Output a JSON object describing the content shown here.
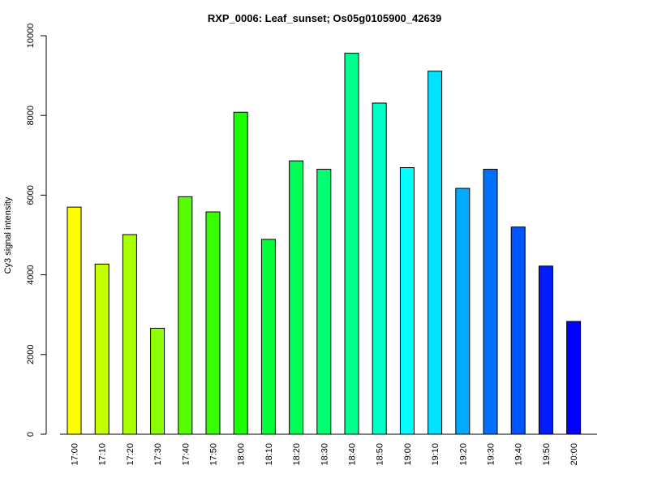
{
  "chart_data": {
    "type": "bar",
    "title": "RXP_0006: Leaf_sunset; Os05g0105900_42639",
    "xlabel": "",
    "ylabel": "Cy3 signal intensity",
    "ylim": [
      0,
      10000
    ],
    "yticks": [
      0,
      2000,
      4000,
      6000,
      8000,
      10000
    ],
    "grid": false,
    "legend": "none",
    "categories": [
      "17:00",
      "17:10",
      "17:20",
      "17:30",
      "17:40",
      "17:50",
      "18:00",
      "18:10",
      "18:20",
      "18:30",
      "18:40",
      "18:50",
      "19:00",
      "19:10",
      "19:20",
      "19:30",
      "19:40",
      "19:50",
      "20:00"
    ],
    "values": [
      5700,
      4270,
      5010,
      2660,
      5960,
      5580,
      8080,
      4890,
      6860,
      6650,
      9560,
      8310,
      6690,
      9110,
      6170,
      6650,
      5200,
      4220,
      2830
    ],
    "colors": [
      "#FFFF00",
      "#C6FF00",
      "#AAFF00",
      "#8EFF00",
      "#55FF00",
      "#38FF00",
      "#1CFF00",
      "#00FF38",
      "#00FF55",
      "#00FF71",
      "#00FF8E",
      "#00FFC6",
      "#00FFFF",
      "#00E2FF",
      "#00AAFF",
      "#0071FF",
      "#0055FF",
      "#001CFF",
      "#0000FF"
    ],
    "bar_edge_color": "#000000"
  }
}
